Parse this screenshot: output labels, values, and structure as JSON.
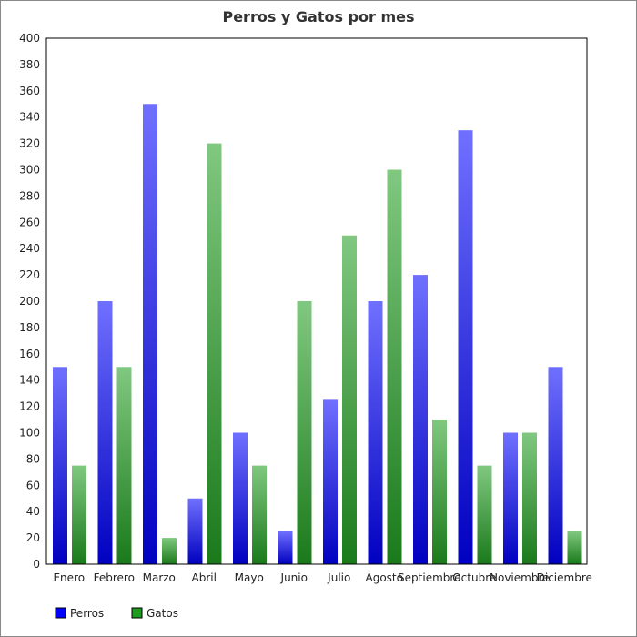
{
  "chart_data": {
    "type": "bar",
    "title": "Perros y Gatos por mes",
    "categories": [
      "Enero",
      "Febrero",
      "Marzo",
      "Abril",
      "Mayo",
      "Junio",
      "Julio",
      "Agosto",
      "Septiembre",
      "Octubre",
      "Noviembre",
      "Diciembre"
    ],
    "series": [
      {
        "name": "Perros",
        "color": "#0000ff",
        "gradient": [
          "#7070ff",
          "#0000c0"
        ],
        "values": [
          150,
          200,
          350,
          50,
          100,
          25,
          125,
          200,
          220,
          330,
          100,
          150
        ]
      },
      {
        "name": "Gatos",
        "color": "#1e9a1e",
        "gradient": [
          "#80c880",
          "#1a7a1a"
        ],
        "values": [
          75,
          150,
          20,
          320,
          75,
          200,
          250,
          300,
          110,
          75,
          100,
          25
        ]
      }
    ],
    "ylim": [
      0,
      400
    ],
    "ytick_step": 20,
    "grid": false,
    "legend": "bottom-left",
    "xlabel": "",
    "ylabel": ""
  }
}
